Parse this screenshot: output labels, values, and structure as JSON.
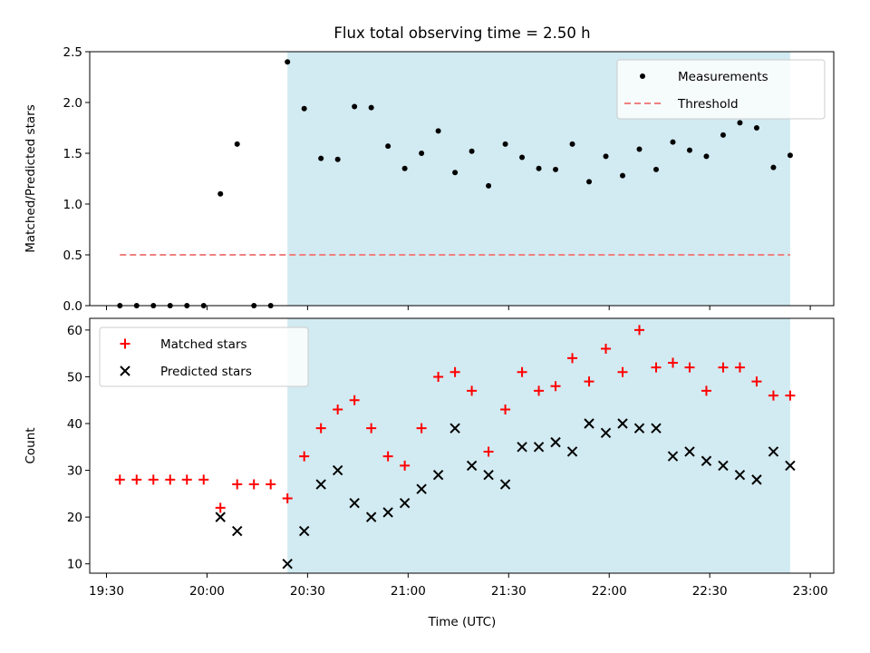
{
  "figure": {
    "title": "Flux total observing time = 2.50 h",
    "xlabel": "Time (UTC)"
  },
  "chart_data": [
    {
      "type": "scatter",
      "title": "Flux total observing time = 2.50 h",
      "xlabel": "",
      "ylabel": "Matched/Predicted stars",
      "ylim": [
        0,
        2.5
      ],
      "yticks": [
        "0.0",
        "0.5",
        "1.0",
        "1.5",
        "2.0",
        "2.5"
      ],
      "shaded_span": {
        "from": "20:24",
        "to": "22:54",
        "color": "#add8e6"
      },
      "legend": {
        "placement": "top-right"
      },
      "series": [
        {
          "name": "Measurements",
          "marker": "dot",
          "color": "#000000",
          "x": [
            "19:34",
            "19:39",
            "19:44",
            "19:49",
            "19:54",
            "19:59",
            "20:04",
            "20:09",
            "20:14",
            "20:19",
            "20:24",
            "20:29",
            "20:34",
            "20:39",
            "20:44",
            "20:49",
            "20:54",
            "20:59",
            "21:04",
            "21:09",
            "21:14",
            "21:19",
            "21:24",
            "21:29",
            "21:34",
            "21:39",
            "21:44",
            "21:49",
            "21:54",
            "21:59",
            "22:04",
            "22:09",
            "22:14",
            "22:19",
            "22:24",
            "22:29",
            "22:34",
            "22:39",
            "22:44",
            "22:49",
            "22:54"
          ],
          "y": [
            0,
            0,
            0,
            0,
            0,
            0,
            1.1,
            1.59,
            0,
            0,
            2.4,
            1.94,
            1.45,
            1.44,
            1.96,
            1.95,
            1.57,
            1.35,
            1.5,
            1.72,
            1.31,
            1.52,
            1.18,
            1.59,
            1.46,
            1.35,
            1.34,
            1.59,
            1.22,
            1.47,
            1.28,
            1.54,
            1.34,
            1.61,
            1.53,
            1.47,
            1.68,
            1.8,
            1.75,
            1.36,
            1.48
          ]
        },
        {
          "name": "Threshold",
          "style": "dashed",
          "color": "#f08080",
          "x": [
            "19:34",
            "22:54"
          ],
          "y": [
            0.5,
            0.5
          ]
        }
      ]
    },
    {
      "type": "scatter",
      "xlabel": "Time (UTC)",
      "ylabel": "Count",
      "ylim": [
        8,
        62.5
      ],
      "yticks": [
        "10",
        "20",
        "30",
        "40",
        "50",
        "60"
      ],
      "xticks": [
        "19:30",
        "20:00",
        "20:30",
        "21:00",
        "21:30",
        "22:00",
        "22:30",
        "23:00"
      ],
      "shaded_span": {
        "from": "20:24",
        "to": "22:54",
        "color": "#add8e6"
      },
      "legend": {
        "placement": "top-left"
      },
      "series": [
        {
          "name": "Matched stars",
          "marker": "plus",
          "color": "#ff0000",
          "x": [
            "19:34",
            "19:39",
            "19:44",
            "19:49",
            "19:54",
            "19:59",
            "20:04",
            "20:09",
            "20:14",
            "20:19",
            "20:24",
            "20:29",
            "20:34",
            "20:39",
            "20:44",
            "20:49",
            "20:54",
            "20:59",
            "21:04",
            "21:09",
            "21:14",
            "21:19",
            "21:24",
            "21:29",
            "21:34",
            "21:39",
            "21:44",
            "21:49",
            "21:54",
            "21:59",
            "22:04",
            "22:09",
            "22:14",
            "22:19",
            "22:24",
            "22:29",
            "22:34",
            "22:39",
            "22:44",
            "22:49",
            "22:54"
          ],
          "y": [
            28,
            28,
            28,
            28,
            28,
            28,
            22,
            27,
            27,
            27,
            24,
            33,
            39,
            43,
            45,
            39,
            33,
            31,
            39,
            50,
            51,
            47,
            34,
            43,
            51,
            47,
            48,
            54,
            49,
            56,
            51,
            60,
            52,
            53,
            52,
            47,
            52,
            52,
            49,
            46,
            46
          ]
        },
        {
          "name": "Predicted stars",
          "marker": "x",
          "color": "#000000",
          "x": [
            "20:04",
            "20:09",
            "20:24",
            "20:29",
            "20:34",
            "20:39",
            "20:44",
            "20:49",
            "20:54",
            "20:59",
            "21:04",
            "21:09",
            "21:14",
            "21:19",
            "21:24",
            "21:29",
            "21:34",
            "21:39",
            "21:44",
            "21:49",
            "21:54",
            "21:59",
            "22:04",
            "22:09",
            "22:14",
            "22:19",
            "22:24",
            "22:29",
            "22:34",
            "22:39",
            "22:44",
            "22:49",
            "22:54"
          ],
          "y": [
            20,
            17,
            10,
            17,
            27,
            30,
            23,
            20,
            21,
            23,
            26,
            29,
            39,
            31,
            29,
            27,
            35,
            35,
            36,
            34,
            40,
            38,
            40,
            39,
            39,
            33,
            34,
            32,
            31,
            29,
            28,
            34,
            31
          ]
        }
      ]
    }
  ]
}
